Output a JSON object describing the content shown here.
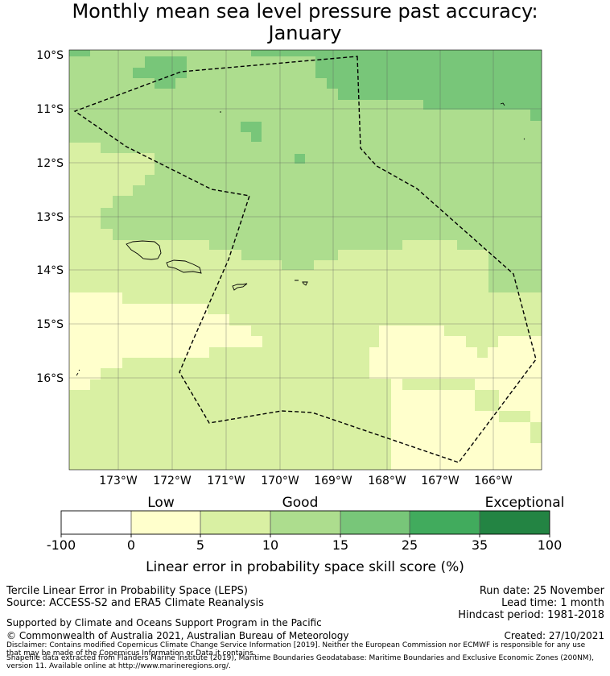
{
  "title": {
    "line1": "Monthly mean sea level pressure past accuracy:",
    "line2": "January"
  },
  "map": {
    "lat_labels": [
      "10°S",
      "11°S",
      "12°S",
      "13°S",
      "14°S",
      "15°S",
      "16°S"
    ],
    "lon_labels": [
      "173°W",
      "172°W",
      "171°W",
      "170°W",
      "169°W",
      "168°W",
      "167°W",
      "166°W"
    ],
    "lat_range": [
      -17.7,
      -10.0
    ],
    "lon_range": [
      -174.0,
      -165.3
    ]
  },
  "colorbar": {
    "category_labels": [
      "Low",
      "Good",
      "Exceptional"
    ],
    "tick_labels": [
      "-100",
      "0",
      "5",
      "10",
      "15",
      "25",
      "35",
      "100"
    ],
    "colors": [
      "#ffffff",
      "#ffffcc",
      "#d9f0a3",
      "#addd8e",
      "#78c679",
      "#41ab5d",
      "#238443"
    ],
    "axis_label": "Linear error in probability space skill score (%)"
  },
  "info": {
    "left1": "Tercile Linear Error in Probability Space (LEPS)",
    "left2": "Source: ACCESS-S2 and ERA5 Climate Reanalysis",
    "right1": "Run date: 25 November",
    "right2": "Lead time: 1 month",
    "right3": "Hindcast period: 1981-2018",
    "supported": "Supported by Climate and Oceans Support Program in the Pacific",
    "copyright": "© Commonwealth of Australia 2021, Australian Bureau of Meteorology",
    "created": "Created: 27/10/2021",
    "disclaimer1": "Disclaimer: Contains modified Copernicus Climate Change Service Information [2019]. Neither the European Commission nor ECMWF is responsible for any use",
    "disclaimer2": "that may be made of the Copernicus Information or Data it contains.",
    "shapefile1": "Shapefile data extracted from Flanders Marine Institute (2019), Maritime Boundaries Geodatabase: Maritime Boundaries and Exclusive Economic Zones (200NM),",
    "shapefile2": "version 11. Available online at http://www.marineregions.org/."
  }
}
